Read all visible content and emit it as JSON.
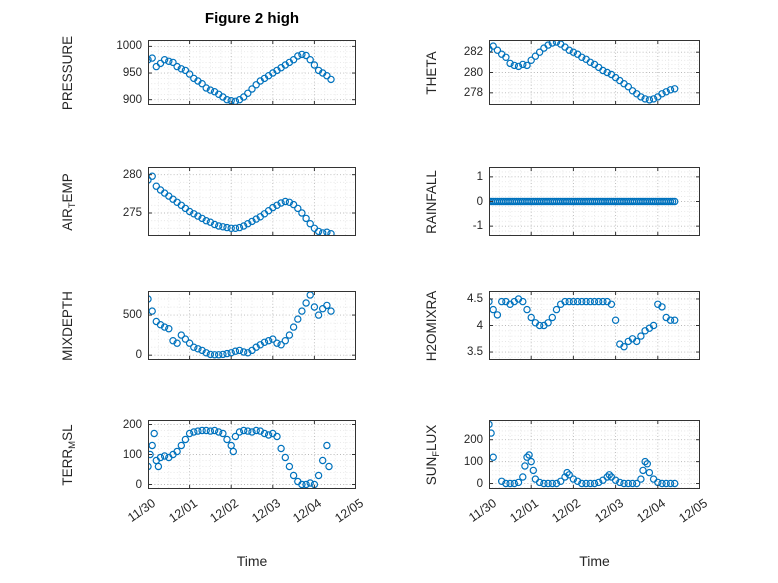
{
  "figure": {
    "title": "Figure 2 high"
  },
  "accent_color": "#0072BD",
  "axis_color": "#262626",
  "chart_data": {
    "type": "scatter",
    "title": "Figure 2 high",
    "xlabel": "Time",
    "marker": "open-circle",
    "marker_color": "#0072BD",
    "grid": "dotted",
    "layout": "4 rows x 2 columns",
    "x_unit": "days since 11/30",
    "xlim": [
      0,
      5
    ],
    "x_tick_values": [
      0,
      1,
      2,
      3,
      4,
      5
    ],
    "x_tick_labels": [
      "11/30",
      "12/01",
      "12/02",
      "12/03",
      "12/04",
      "12/05"
    ],
    "subplots": [
      {
        "id": "pressure",
        "row": 0,
        "col": 0,
        "label": "PRESSURE",
        "label_parts": [
          {
            "text": "PRESSURE",
            "sub": false
          }
        ],
        "yticks": [
          900,
          950,
          1000
        ],
        "ylim": [
          890,
          1012
        ],
        "t_uniform": {
          "start": 0,
          "step": 0.1
        },
        "v": [
          975,
          978,
          962,
          968,
          975,
          972,
          970,
          962,
          958,
          955,
          948,
          940,
          935,
          930,
          922,
          918,
          915,
          910,
          905,
          900,
          898,
          897,
          900,
          905,
          912,
          920,
          928,
          935,
          940,
          945,
          950,
          955,
          960,
          965,
          970,
          975,
          982,
          985,
          983,
          975,
          965,
          955,
          950,
          945,
          938
        ]
      },
      {
        "id": "theta",
        "row": 0,
        "col": 1,
        "label": "THETA",
        "label_parts": [
          {
            "text": "THETA",
            "sub": false
          }
        ],
        "yticks": [
          278,
          280,
          282
        ],
        "ylim": [
          276.8,
          283.2
        ],
        "t_uniform": {
          "start": 0,
          "step": 0.1
        },
        "v": [
          282.3,
          282.6,
          282.2,
          281.8,
          281.5,
          280.9,
          280.7,
          280.6,
          280.8,
          280.7,
          281.2,
          281.6,
          282.0,
          282.4,
          282.7,
          282.9,
          283.0,
          282.8,
          282.5,
          282.2,
          282.0,
          281.8,
          281.5,
          281.3,
          281.0,
          280.8,
          280.5,
          280.2,
          280.0,
          279.8,
          279.5,
          279.2,
          278.9,
          278.6,
          278.2,
          277.9,
          277.6,
          277.4,
          277.3,
          277.4,
          277.6,
          277.9,
          278.1,
          278.3,
          278.4
        ]
      },
      {
        "id": "air-temp",
        "row": 1,
        "col": 0,
        "label": "AIR_TEMP",
        "label_parts": [
          {
            "text": "AIR",
            "sub": false
          },
          {
            "text": "T",
            "sub": true
          },
          {
            "text": "EMP",
            "sub": false
          }
        ],
        "yticks": [
          275,
          280
        ],
        "ylim": [
          272,
          281
        ],
        "t_uniform": {
          "start": 0,
          "step": 0.1
        },
        "v": [
          279.3,
          279.8,
          278.5,
          278.0,
          277.6,
          277.2,
          276.8,
          276.4,
          276.0,
          275.6,
          275.2,
          274.9,
          274.6,
          274.3,
          274.0,
          273.8,
          273.5,
          273.3,
          273.2,
          273.1,
          273.0,
          273.0,
          273.1,
          273.3,
          273.6,
          273.9,
          274.2,
          274.5,
          274.9,
          275.3,
          275.7,
          276.0,
          276.3,
          276.5,
          276.4,
          276.1,
          275.6,
          275.0,
          274.3,
          273.6,
          273.0,
          272.6,
          272.4,
          272.5,
          272.3
        ]
      },
      {
        "id": "rainfall",
        "row": 1,
        "col": 1,
        "label": "RAINFALL",
        "label_parts": [
          {
            "text": "RAINFALL",
            "sub": false
          }
        ],
        "yticks": [
          -1,
          0,
          1
        ],
        "ylim": [
          -1.4,
          1.4
        ],
        "const_series": {
          "start": 0,
          "end": 4.4,
          "step": 0.05,
          "value": 0
        }
      },
      {
        "id": "mixdepth",
        "row": 2,
        "col": 0,
        "label": "MIXDEPTH",
        "label_parts": [
          {
            "text": "MIXDEPTH",
            "sub": false
          }
        ],
        "yticks": [
          0,
          500
        ],
        "ylim": [
          -60,
          800
        ],
        "t_uniform": {
          "start": 0,
          "step": 0.1
        },
        "v": [
          700,
          550,
          420,
          380,
          350,
          330,
          180,
          150,
          250,
          200,
          150,
          100,
          80,
          60,
          30,
          10,
          5,
          5,
          10,
          20,
          30,
          50,
          60,
          40,
          30,
          60,
          100,
          130,
          160,
          180,
          200,
          150,
          130,
          180,
          250,
          350,
          450,
          550,
          650,
          750,
          600,
          500,
          580,
          620,
          550
        ]
      },
      {
        "id": "h2omixra",
        "row": 2,
        "col": 1,
        "label": "H2OMIXRA",
        "label_parts": [
          {
            "text": "H2OMIXRA",
            "sub": false
          }
        ],
        "yticks": [
          3.5,
          4,
          4.5
        ],
        "ylim": [
          3.35,
          4.65
        ],
        "t_uniform": {
          "start": 0,
          "step": 0.1
        },
        "v": [
          4.45,
          4.3,
          4.2,
          4.45,
          4.45,
          4.4,
          4.45,
          4.5,
          4.45,
          4.3,
          4.15,
          4.05,
          4.0,
          4.0,
          4.05,
          4.15,
          4.3,
          4.4,
          4.45,
          4.45,
          4.45,
          4.45,
          4.45,
          4.45,
          4.45,
          4.45,
          4.45,
          4.45,
          4.45,
          4.4,
          4.1,
          3.65,
          3.6,
          3.7,
          3.75,
          3.7,
          3.8,
          3.9,
          3.95,
          4.0,
          4.4,
          4.35,
          4.15,
          4.1,
          4.1
        ]
      },
      {
        "id": "terr-msl",
        "row": 3,
        "col": 0,
        "label": "TERR_MSL",
        "label_parts": [
          {
            "text": "TERR",
            "sub": false
          },
          {
            "text": "M",
            "sub": true
          },
          {
            "text": "SL",
            "sub": false
          }
        ],
        "yticks": [
          0,
          100,
          200
        ],
        "ylim": [
          -15,
          215
        ],
        "t": [
          0,
          0.05,
          0.1,
          0.15,
          0.2,
          0.25,
          0.3,
          0.4,
          0.5,
          0.6,
          0.7,
          0.8,
          0.9,
          1.0,
          1.1,
          1.2,
          1.3,
          1.4,
          1.5,
          1.6,
          1.7,
          1.8,
          1.9,
          2.0,
          2.05,
          2.1,
          2.2,
          2.3,
          2.4,
          2.5,
          2.6,
          2.7,
          2.8,
          2.9,
          3.0,
          3.1,
          3.2,
          3.3,
          3.4,
          3.5,
          3.6,
          3.7,
          3.8,
          3.9,
          4.0,
          4.1,
          4.2,
          4.3,
          4.35
        ],
        "v": [
          60,
          100,
          130,
          170,
          80,
          60,
          90,
          95,
          90,
          100,
          110,
          130,
          150,
          170,
          175,
          178,
          180,
          180,
          178,
          180,
          175,
          170,
          150,
          130,
          110,
          160,
          175,
          180,
          178,
          175,
          180,
          178,
          170,
          165,
          170,
          160,
          120,
          90,
          60,
          30,
          10,
          0,
          0,
          5,
          0,
          30,
          80,
          130,
          60
        ]
      },
      {
        "id": "sun-flux",
        "row": 3,
        "col": 1,
        "label": "SUN_FLUX",
        "label_parts": [
          {
            "text": "SUN",
            "sub": false
          },
          {
            "text": "F",
            "sub": true
          },
          {
            "text": "LUX",
            "sub": false
          }
        ],
        "yticks": [
          0,
          100,
          200
        ],
        "ylim": [
          -25,
          290
        ],
        "t": [
          0,
          0.05,
          0.1,
          0.3,
          0.4,
          0.5,
          0.6,
          0.7,
          0.8,
          0.85,
          0.9,
          0.95,
          1.0,
          1.05,
          1.1,
          1.2,
          1.3,
          1.4,
          1.5,
          1.6,
          1.7,
          1.8,
          1.85,
          1.9,
          2.0,
          2.1,
          2.2,
          2.3,
          2.4,
          2.5,
          2.6,
          2.7,
          2.8,
          2.85,
          2.9,
          3.0,
          3.1,
          3.2,
          3.3,
          3.4,
          3.5,
          3.6,
          3.65,
          3.7,
          3.75,
          3.8,
          3.9,
          4.0,
          4.1,
          4.2,
          4.3,
          4.4
        ],
        "v": [
          270,
          230,
          120,
          10,
          0,
          0,
          0,
          5,
          30,
          80,
          120,
          130,
          100,
          60,
          20,
          5,
          0,
          0,
          0,
          0,
          10,
          30,
          50,
          40,
          20,
          10,
          0,
          0,
          0,
          0,
          5,
          15,
          30,
          40,
          30,
          15,
          5,
          0,
          0,
          0,
          0,
          20,
          60,
          100,
          90,
          50,
          20,
          5,
          0,
          0,
          0,
          0
        ]
      }
    ]
  }
}
